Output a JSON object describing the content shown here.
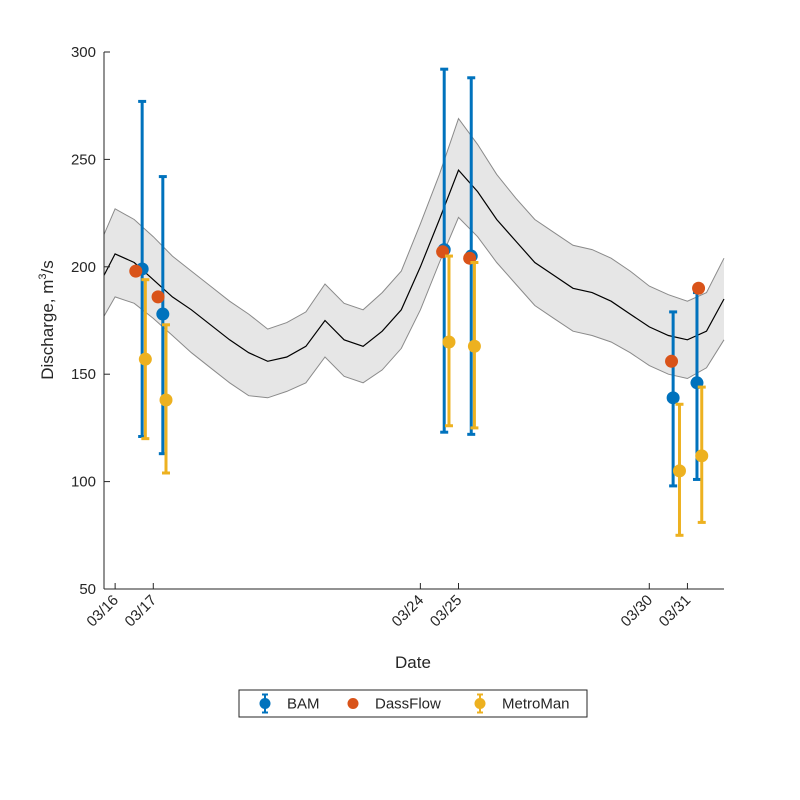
{
  "chart_data": {
    "type": "scatter",
    "xlabel": "Date",
    "ylabel": "Discharge, m",
    "ylabel_sup": "3",
    "ylabel_suffix": "/s",
    "ylim": [
      50,
      300
    ],
    "yticks": [
      50,
      100,
      150,
      200,
      250,
      300
    ],
    "xlim": [
      "2020-03-15T17:00",
      "2020-03-31T23:00"
    ],
    "xticks": [
      {
        "date": "2020-03-16",
        "label": "03/16"
      },
      {
        "date": "2020-03-17",
        "label": "03/17"
      },
      {
        "date": "2020-03-24",
        "label": "03/24"
      },
      {
        "date": "2020-03-25",
        "label": "03/25"
      },
      {
        "date": "2020-03-30",
        "label": "03/30"
      },
      {
        "date": "2020-03-31",
        "label": "03/31"
      }
    ],
    "grid": false,
    "legend_position": "bottom",
    "legend": [
      "BAM",
      "DassFlow",
      "MetroMan"
    ],
    "reference_line": {
      "color": "#000000",
      "band_color": "#e6e6e6",
      "x": [
        "2020-03-15T17:00",
        "2020-03-16T00:00",
        "2020-03-16T12:00",
        "2020-03-17T00:00",
        "2020-03-17T12:00",
        "2020-03-18T00:00",
        "2020-03-18T12:00",
        "2020-03-19T00:00",
        "2020-03-19T12:00",
        "2020-03-20T00:00",
        "2020-03-20T12:00",
        "2020-03-21T00:00",
        "2020-03-21T12:00",
        "2020-03-22T00:00",
        "2020-03-22T12:00",
        "2020-03-23T00:00",
        "2020-03-23T12:00",
        "2020-03-24T00:00",
        "2020-03-24T12:00",
        "2020-03-25T00:00",
        "2020-03-25T12:00",
        "2020-03-26T00:00",
        "2020-03-26T12:00",
        "2020-03-27T00:00",
        "2020-03-27T12:00",
        "2020-03-28T00:00",
        "2020-03-28T12:00",
        "2020-03-29T00:00",
        "2020-03-29T12:00",
        "2020-03-30T00:00",
        "2020-03-30T12:00",
        "2020-03-31T00:00",
        "2020-03-31T12:00",
        "2020-03-31T23:00"
      ],
      "y": [
        196,
        206,
        202,
        194,
        186,
        180,
        173,
        166,
        160,
        156,
        158,
        163,
        175,
        166,
        163,
        170,
        180,
        200,
        222,
        245,
        235,
        222,
        212,
        202,
        196,
        190,
        188,
        184,
        178,
        172,
        168,
        166,
        170,
        185
      ],
      "lower": [
        177,
        186,
        183,
        176,
        168,
        160,
        153,
        146,
        140,
        139,
        142,
        146,
        158,
        149,
        146,
        152,
        162,
        180,
        202,
        223,
        214,
        202,
        192,
        182,
        176,
        170,
        168,
        165,
        160,
        154,
        150,
        148,
        153,
        166
      ],
      "upper": [
        215,
        227,
        222,
        214,
        205,
        198,
        191,
        184,
        178,
        171,
        174,
        179,
        192,
        183,
        180,
        188,
        198,
        220,
        243,
        269,
        257,
        243,
        232,
        222,
        216,
        210,
        208,
        204,
        198,
        191,
        187,
        184,
        188,
        204
      ]
    },
    "series": [
      {
        "name": "BAM",
        "color": "#0072BD",
        "x": [
          "2020-03-16T17:00",
          "2020-03-17T06:00",
          "2020-03-24T15:00",
          "2020-03-25T08:00",
          "2020-03-30T15:00",
          "2020-03-31T06:00"
        ],
        "y": [
          199,
          178,
          208,
          205,
          139,
          146
        ],
        "err_low": [
          121,
          113,
          123,
          122,
          98,
          101
        ],
        "err_high": [
          277,
          242,
          292,
          288,
          179,
          188
        ]
      },
      {
        "name": "DassFlow",
        "color": "#D95319",
        "x": [
          "2020-03-16T13:00",
          "2020-03-17T03:00",
          "2020-03-24T14:00",
          "2020-03-25T07:00",
          "2020-03-30T14:00",
          "2020-03-31T07:00"
        ],
        "y": [
          198,
          186,
          207,
          204,
          156,
          190
        ]
      },
      {
        "name": "MetroMan",
        "color": "#EDB120",
        "x": [
          "2020-03-16T19:00",
          "2020-03-17T08:00",
          "2020-03-24T18:00",
          "2020-03-25T10:00",
          "2020-03-30T19:00",
          "2020-03-31T09:00"
        ],
        "y": [
          157,
          138,
          165,
          163,
          105,
          112
        ],
        "err_low": [
          120,
          104,
          126,
          125,
          75,
          81
        ],
        "err_high": [
          194,
          173,
          205,
          202,
          136,
          144
        ]
      }
    ]
  }
}
